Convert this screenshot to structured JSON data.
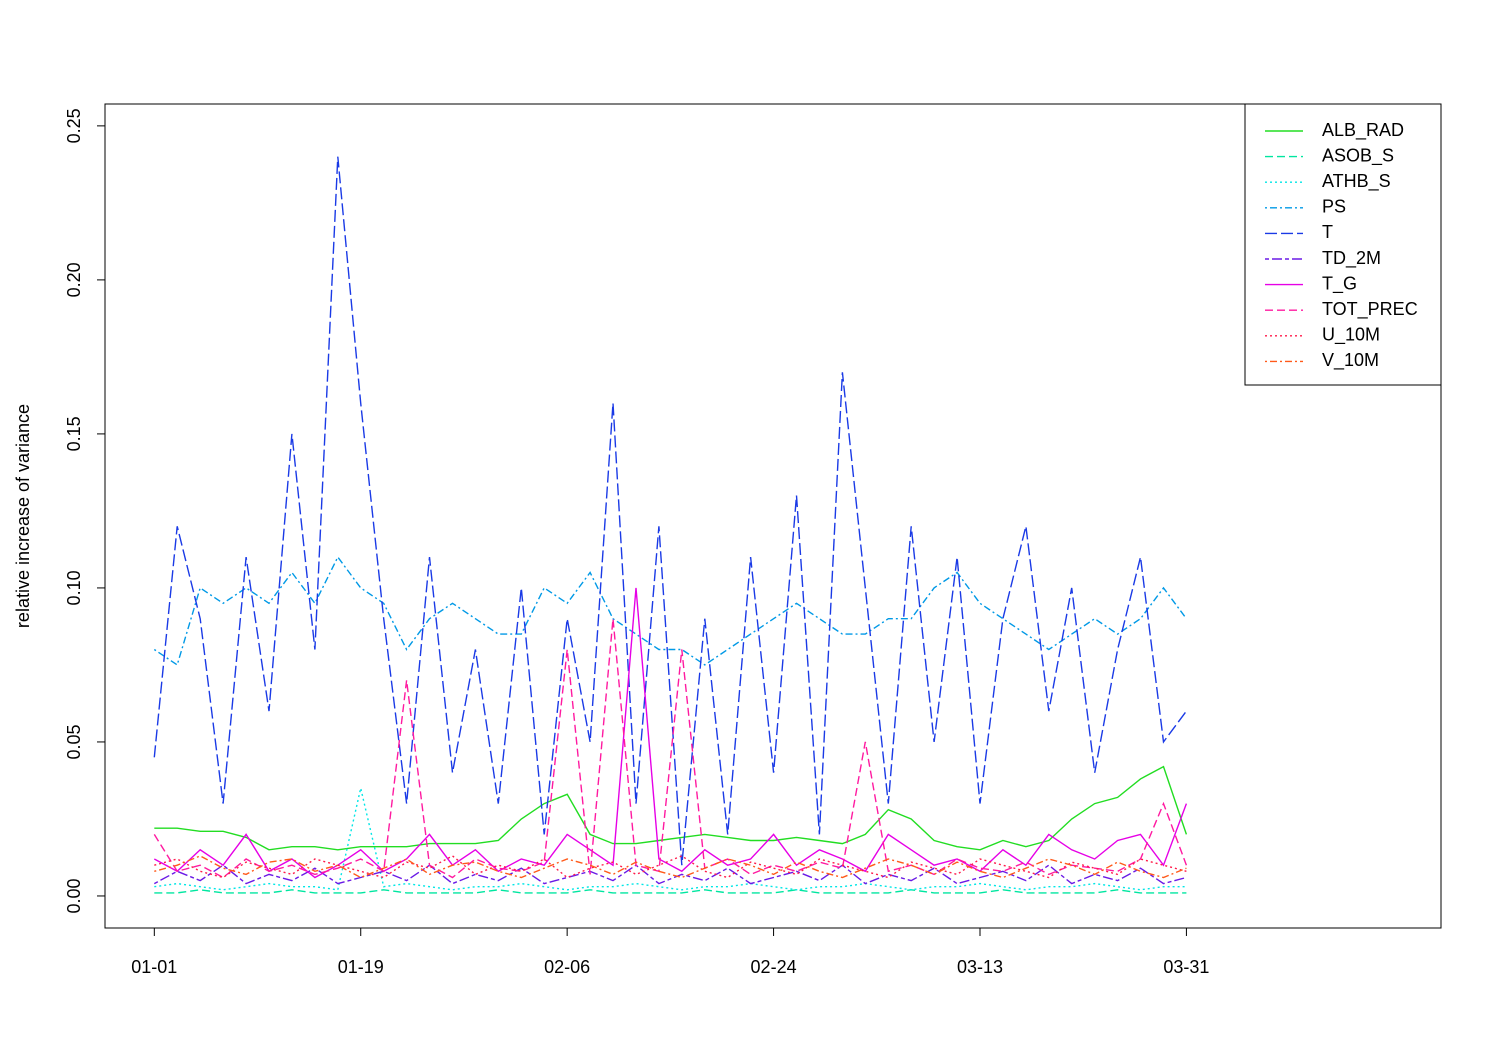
{
  "chart_data": {
    "type": "line",
    "ylabel": "relative increase of variance",
    "x": [
      0,
      2,
      4,
      6,
      8,
      10,
      12,
      14,
      16,
      18,
      20,
      22,
      24,
      26,
      28,
      30,
      32,
      34,
      36,
      38,
      40,
      42,
      44,
      46,
      48,
      50,
      52,
      54,
      56,
      58,
      60,
      62,
      64,
      66,
      68,
      70,
      72,
      74,
      76,
      78,
      80,
      82,
      84,
      86,
      88,
      90
    ],
    "xlim": [
      -4.3,
      112.2
    ],
    "xticks": [
      {
        "value": 0,
        "label": "01-01"
      },
      {
        "value": 18,
        "label": "01-19"
      },
      {
        "value": 36,
        "label": "02-06"
      },
      {
        "value": 54,
        "label": "02-24"
      },
      {
        "value": 72,
        "label": "03-13"
      },
      {
        "value": 90,
        "label": "03-31"
      }
    ],
    "ylim": [
      -0.0104,
      0.2571
    ],
    "yticks": [
      {
        "value": 0,
        "label": "0.00"
      },
      0.05,
      {
        "value": 0.1,
        "label": "0.10"
      },
      0.15,
      {
        "value": 0.2,
        "label": "0.20"
      },
      0.25
    ],
    "legend": "top-right",
    "series": [
      {
        "name": "ALB_RAD",
        "color": "#22dd22",
        "linestyle": "solid",
        "values": [
          0.022,
          0.022,
          0.021,
          0.021,
          0.019,
          0.015,
          0.016,
          0.016,
          0.015,
          0.016,
          0.016,
          0.016,
          0.017,
          0.017,
          0.017,
          0.018,
          0.025,
          0.03,
          0.033,
          0.02,
          0.017,
          0.017,
          0.018,
          0.019,
          0.02,
          0.019,
          0.018,
          0.018,
          0.019,
          0.018,
          0.017,
          0.02,
          0.028,
          0.025,
          0.018,
          0.016,
          0.015,
          0.018,
          0.016,
          0.018,
          0.025,
          0.03,
          0.032,
          0.038,
          0.042,
          0.02
        ]
      },
      {
        "name": "ASOB_S",
        "color": "#00e6a0",
        "linestyle": "dashed",
        "values": [
          0.001,
          0.001,
          0.002,
          0.001,
          0.001,
          0.001,
          0.002,
          0.001,
          0.001,
          0.001,
          0.002,
          0.001,
          0.001,
          0.001,
          0.001,
          0.002,
          0.001,
          0.001,
          0.001,
          0.002,
          0.001,
          0.001,
          0.001,
          0.001,
          0.002,
          0.001,
          0.001,
          0.001,
          0.002,
          0.001,
          0.001,
          0.001,
          0.001,
          0.002,
          0.001,
          0.001,
          0.001,
          0.002,
          0.001,
          0.001,
          0.001,
          0.001,
          0.002,
          0.001,
          0.001,
          0.001
        ]
      },
      {
        "name": "ATHB_S",
        "color": "#00e6e6",
        "linestyle": "dotted",
        "values": [
          0.003,
          0.004,
          0.003,
          0.002,
          0.003,
          0.004,
          0.003,
          0.003,
          0.002,
          0.035,
          0.003,
          0.004,
          0.003,
          0.002,
          0.003,
          0.003,
          0.004,
          0.003,
          0.002,
          0.003,
          0.003,
          0.004,
          0.003,
          0.002,
          0.003,
          0.003,
          0.004,
          0.003,
          0.002,
          0.003,
          0.003,
          0.004,
          0.003,
          0.002,
          0.003,
          0.003,
          0.004,
          0.003,
          0.002,
          0.003,
          0.003,
          0.004,
          0.003,
          0.002,
          0.003,
          0.003
        ]
      },
      {
        "name": "PS",
        "color": "#0099e6",
        "linestyle": "dotdash",
        "values": [
          0.08,
          0.075,
          0.1,
          0.095,
          0.1,
          0.095,
          0.105,
          0.095,
          0.11,
          0.1,
          0.095,
          0.08,
          0.09,
          0.095,
          0.09,
          0.085,
          0.085,
          0.1,
          0.095,
          0.105,
          0.09,
          0.085,
          0.08,
          0.08,
          0.075,
          0.08,
          0.085,
          0.09,
          0.095,
          0.09,
          0.085,
          0.085,
          0.09,
          0.09,
          0.1,
          0.105,
          0.095,
          0.09,
          0.085,
          0.08,
          0.085,
          0.09,
          0.085,
          0.09,
          0.1,
          0.09
        ]
      },
      {
        "name": "T",
        "color": "#1a3ae6",
        "linestyle": "longdash",
        "values": [
          0.045,
          0.12,
          0.09,
          0.03,
          0.11,
          0.06,
          0.15,
          0.08,
          0.24,
          0.16,
          0.09,
          0.03,
          0.11,
          0.04,
          0.08,
          0.03,
          0.1,
          0.02,
          0.09,
          0.05,
          0.16,
          0.03,
          0.12,
          0.01,
          0.09,
          0.02,
          0.11,
          0.04,
          0.13,
          0.02,
          0.17,
          0.1,
          0.03,
          0.12,
          0.05,
          0.11,
          0.03,
          0.09,
          0.12,
          0.06,
          0.1,
          0.04,
          0.08,
          0.11,
          0.05,
          0.06
        ]
      },
      {
        "name": "TD_2M",
        "color": "#6a1ae6",
        "linestyle": "twodash",
        "values": [
          0.004,
          0.008,
          0.005,
          0.01,
          0.004,
          0.007,
          0.005,
          0.009,
          0.004,
          0.006,
          0.008,
          0.005,
          0.01,
          0.004,
          0.007,
          0.005,
          0.009,
          0.004,
          0.006,
          0.008,
          0.005,
          0.01,
          0.004,
          0.007,
          0.005,
          0.009,
          0.004,
          0.006,
          0.008,
          0.005,
          0.01,
          0.004,
          0.007,
          0.005,
          0.009,
          0.004,
          0.006,
          0.008,
          0.005,
          0.01,
          0.004,
          0.007,
          0.005,
          0.009,
          0.004,
          0.006
        ]
      },
      {
        "name": "T_G",
        "color": "#e600e6",
        "linestyle": "solid",
        "values": [
          0.012,
          0.008,
          0.015,
          0.01,
          0.02,
          0.008,
          0.012,
          0.006,
          0.01,
          0.015,
          0.008,
          0.012,
          0.02,
          0.01,
          0.015,
          0.008,
          0.012,
          0.01,
          0.02,
          0.015,
          0.01,
          0.1,
          0.012,
          0.008,
          0.015,
          0.01,
          0.012,
          0.02,
          0.01,
          0.015,
          0.012,
          0.008,
          0.02,
          0.015,
          0.01,
          0.012,
          0.008,
          0.015,
          0.01,
          0.02,
          0.015,
          0.012,
          0.018,
          0.02,
          0.01,
          0.03
        ]
      },
      {
        "name": "TOT_PREC",
        "color": "#ff1aa0",
        "linestyle": "dashed",
        "values": [
          0.02,
          0.008,
          0.01,
          0.006,
          0.012,
          0.008,
          0.01,
          0.007,
          0.009,
          0.012,
          0.008,
          0.07,
          0.01,
          0.006,
          0.012,
          0.009,
          0.008,
          0.011,
          0.08,
          0.007,
          0.09,
          0.01,
          0.008,
          0.08,
          0.009,
          0.012,
          0.007,
          0.01,
          0.008,
          0.011,
          0.009,
          0.05,
          0.008,
          0.01,
          0.007,
          0.012,
          0.009,
          0.008,
          0.011,
          0.007,
          0.01,
          0.009,
          0.008,
          0.012,
          0.03,
          0.01
        ]
      },
      {
        "name": "U_10M",
        "color": "#ff1a4a",
        "linestyle": "dotted",
        "values": [
          0.01,
          0.012,
          0.008,
          0.006,
          0.011,
          0.009,
          0.007,
          0.012,
          0.01,
          0.008,
          0.006,
          0.011,
          0.009,
          0.013,
          0.007,
          0.01,
          0.008,
          0.012,
          0.006,
          0.009,
          0.011,
          0.007,
          0.01,
          0.013,
          0.008,
          0.006,
          0.011,
          0.009,
          0.007,
          0.012,
          0.01,
          0.008,
          0.006,
          0.011,
          0.009,
          0.007,
          0.012,
          0.01,
          0.008,
          0.006,
          0.011,
          0.009,
          0.007,
          0.012,
          0.01,
          0.008
        ]
      },
      {
        "name": "V_10M",
        "color": "#ff5a1a",
        "linestyle": "dotdash",
        "values": [
          0.008,
          0.01,
          0.013,
          0.009,
          0.007,
          0.011,
          0.012,
          0.008,
          0.01,
          0.006,
          0.009,
          0.012,
          0.007,
          0.01,
          0.011,
          0.008,
          0.006,
          0.009,
          0.012,
          0.01,
          0.007,
          0.011,
          0.008,
          0.006,
          0.009,
          0.012,
          0.01,
          0.007,
          0.011,
          0.008,
          0.006,
          0.009,
          0.012,
          0.01,
          0.007,
          0.011,
          0.008,
          0.006,
          0.009,
          0.012,
          0.01,
          0.007,
          0.011,
          0.008,
          0.006,
          0.009
        ]
      }
    ]
  }
}
